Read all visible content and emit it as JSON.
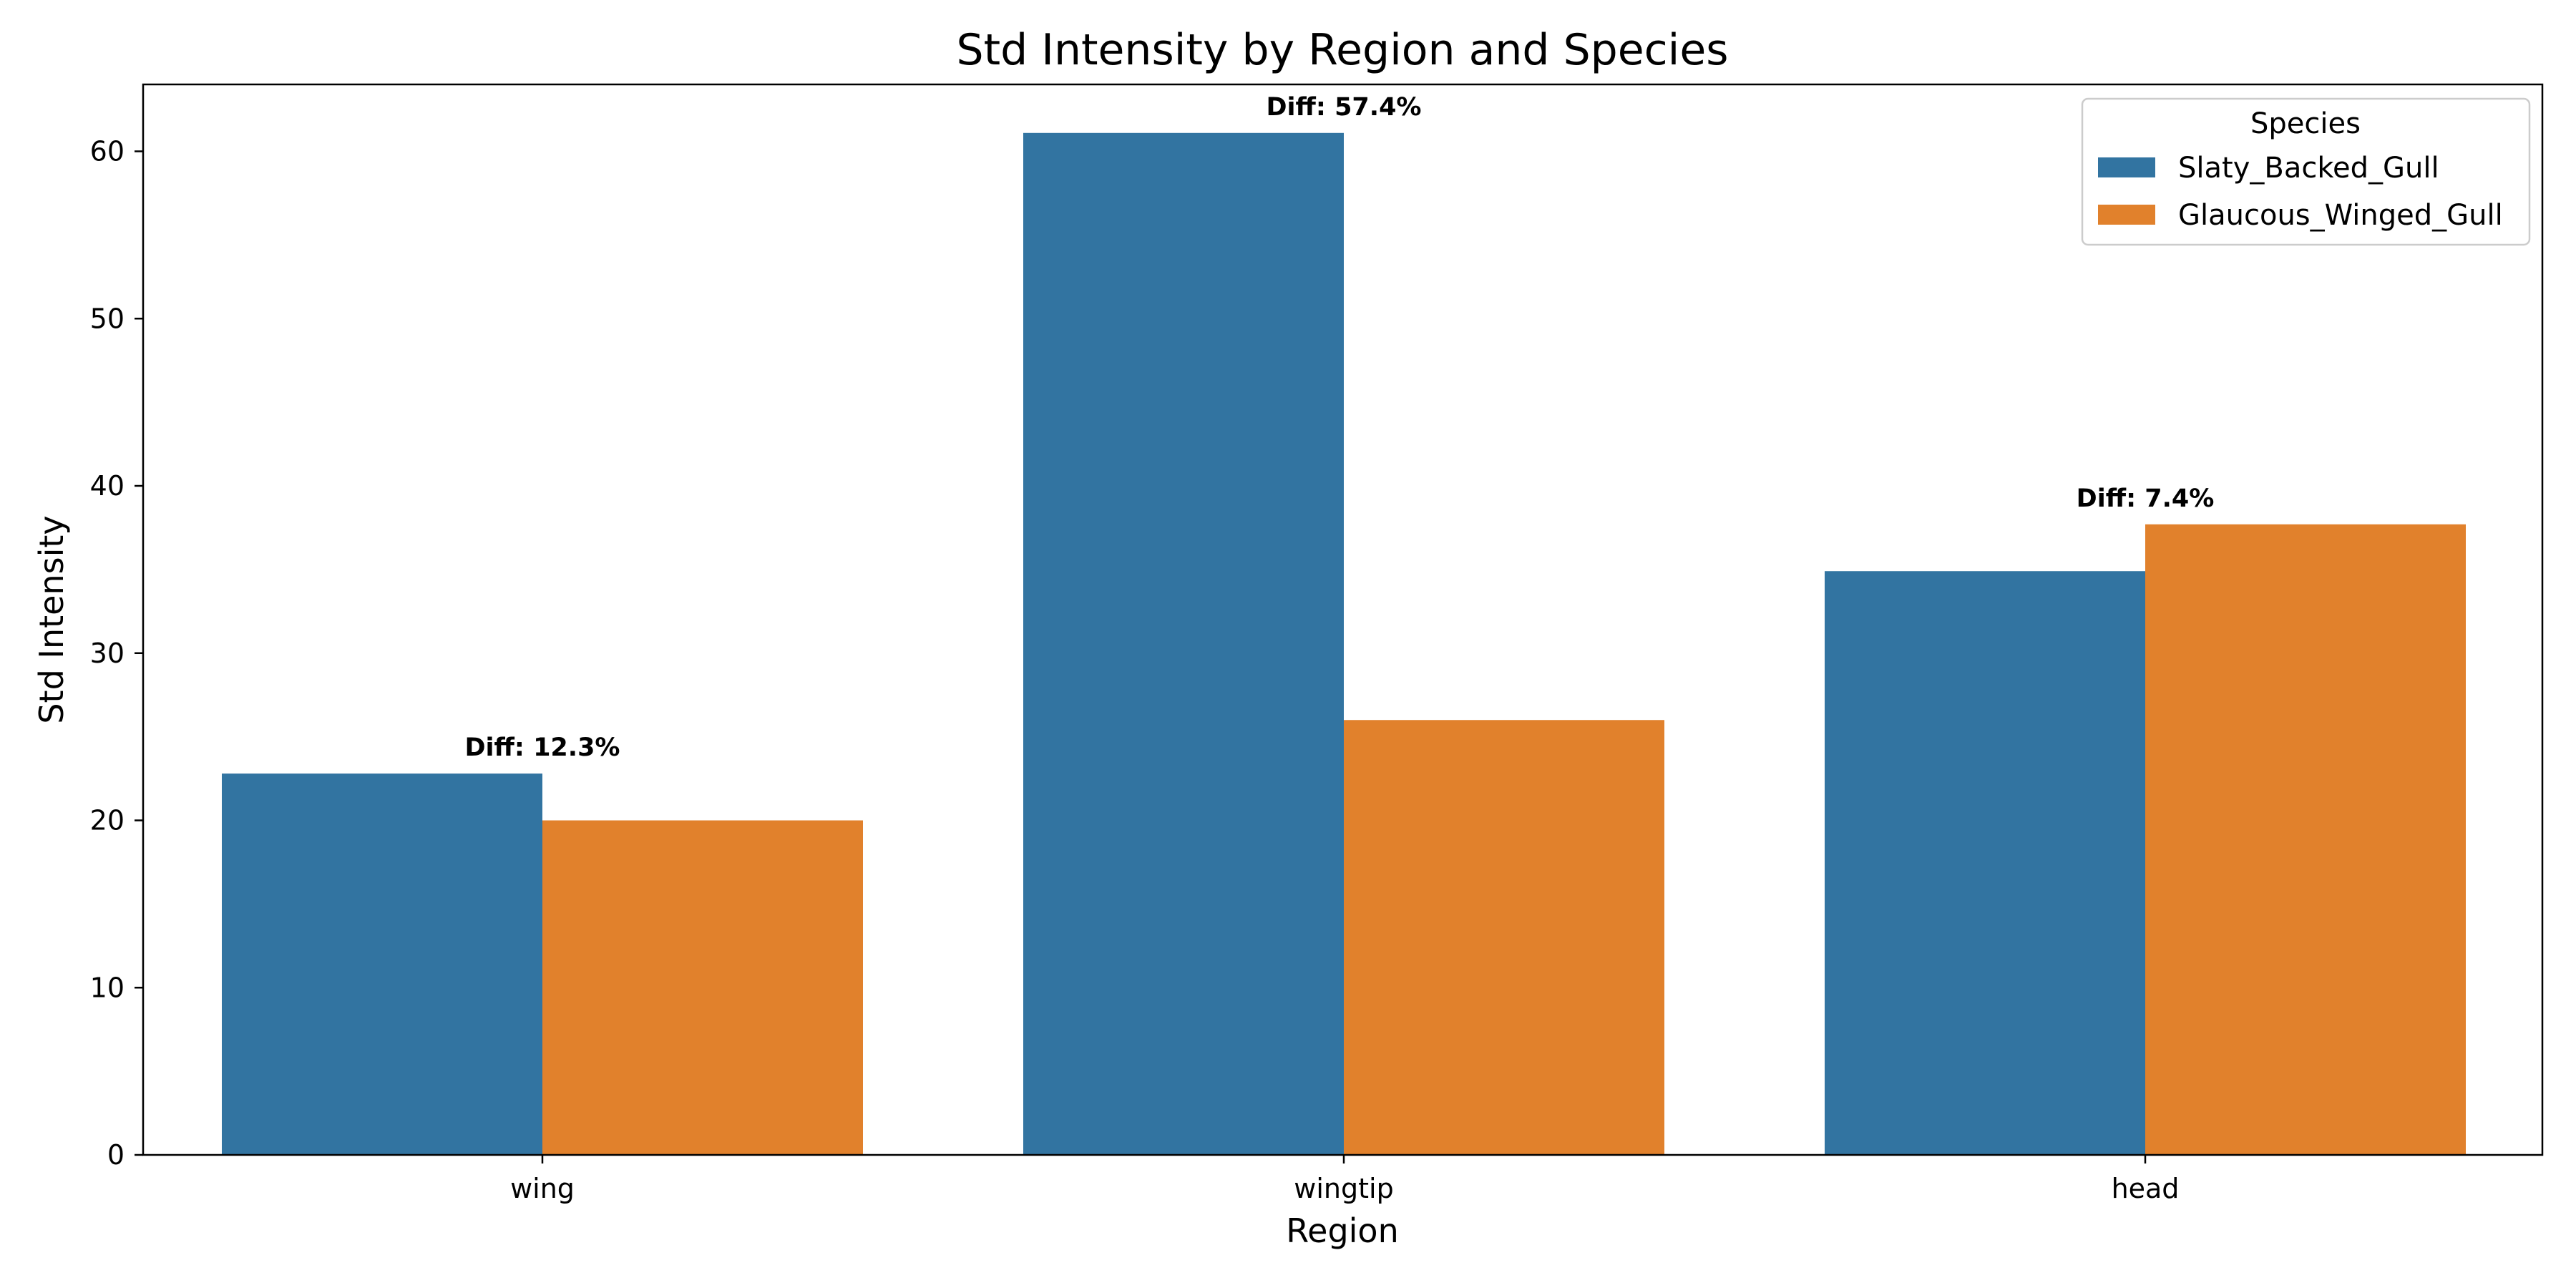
{
  "chart_data": {
    "type": "bar",
    "title": "Std Intensity by Region and Species",
    "xlabel": "Region",
    "ylabel": "Std Intensity",
    "categories": [
      "wing",
      "wingtip",
      "head"
    ],
    "series": [
      {
        "name": "Slaty_Backed_Gull",
        "values": [
          22.8,
          61.1,
          34.9
        ],
        "color": "#3274a1"
      },
      {
        "name": "Glaucous_Winged_Gull",
        "values": [
          20.0,
          26.0,
          37.7
        ],
        "color": "#e1812c"
      }
    ],
    "annotations": [
      "Diff: 12.3%",
      "Diff: 57.4%",
      "Diff: 7.4%"
    ],
    "ylim": [
      0,
      64
    ],
    "yticks": [
      0,
      10,
      20,
      30,
      40,
      50,
      60
    ],
    "legend": {
      "title": "Species",
      "placement": "top-right"
    },
    "grid": false
  }
}
